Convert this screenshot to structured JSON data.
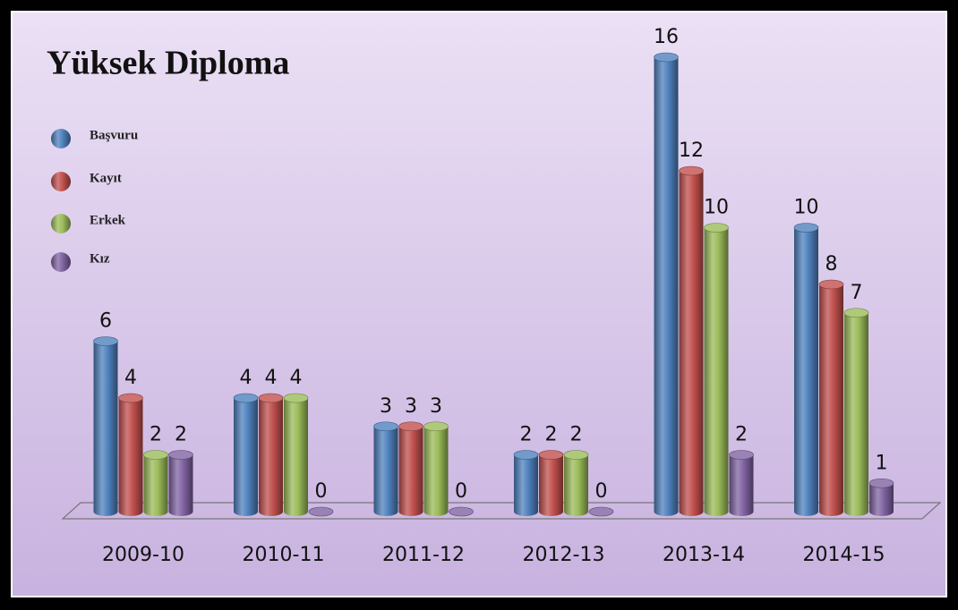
{
  "chart_data": {
    "type": "bar3d",
    "title": "Yüksek Diploma",
    "categories": [
      "2009-10",
      "2010-11",
      "2011-12",
      "2012-13",
      "2013-14",
      "2014-15"
    ],
    "series": [
      {
        "name": "Başvuru",
        "color": "#4f81bd",
        "values": [
          6,
          4,
          3,
          2,
          16,
          10
        ]
      },
      {
        "name": "Kayıt",
        "color": "#c0504d",
        "values": [
          4,
          4,
          3,
          2,
          12,
          8
        ]
      },
      {
        "name": "Erkek",
        "color": "#9bbb59",
        "values": [
          2,
          4,
          3,
          2,
          10,
          7
        ]
      },
      {
        "name": "Kız",
        "color": "#8064a2",
        "values": [
          2,
          0,
          0,
          0,
          2,
          1
        ]
      }
    ]
  }
}
